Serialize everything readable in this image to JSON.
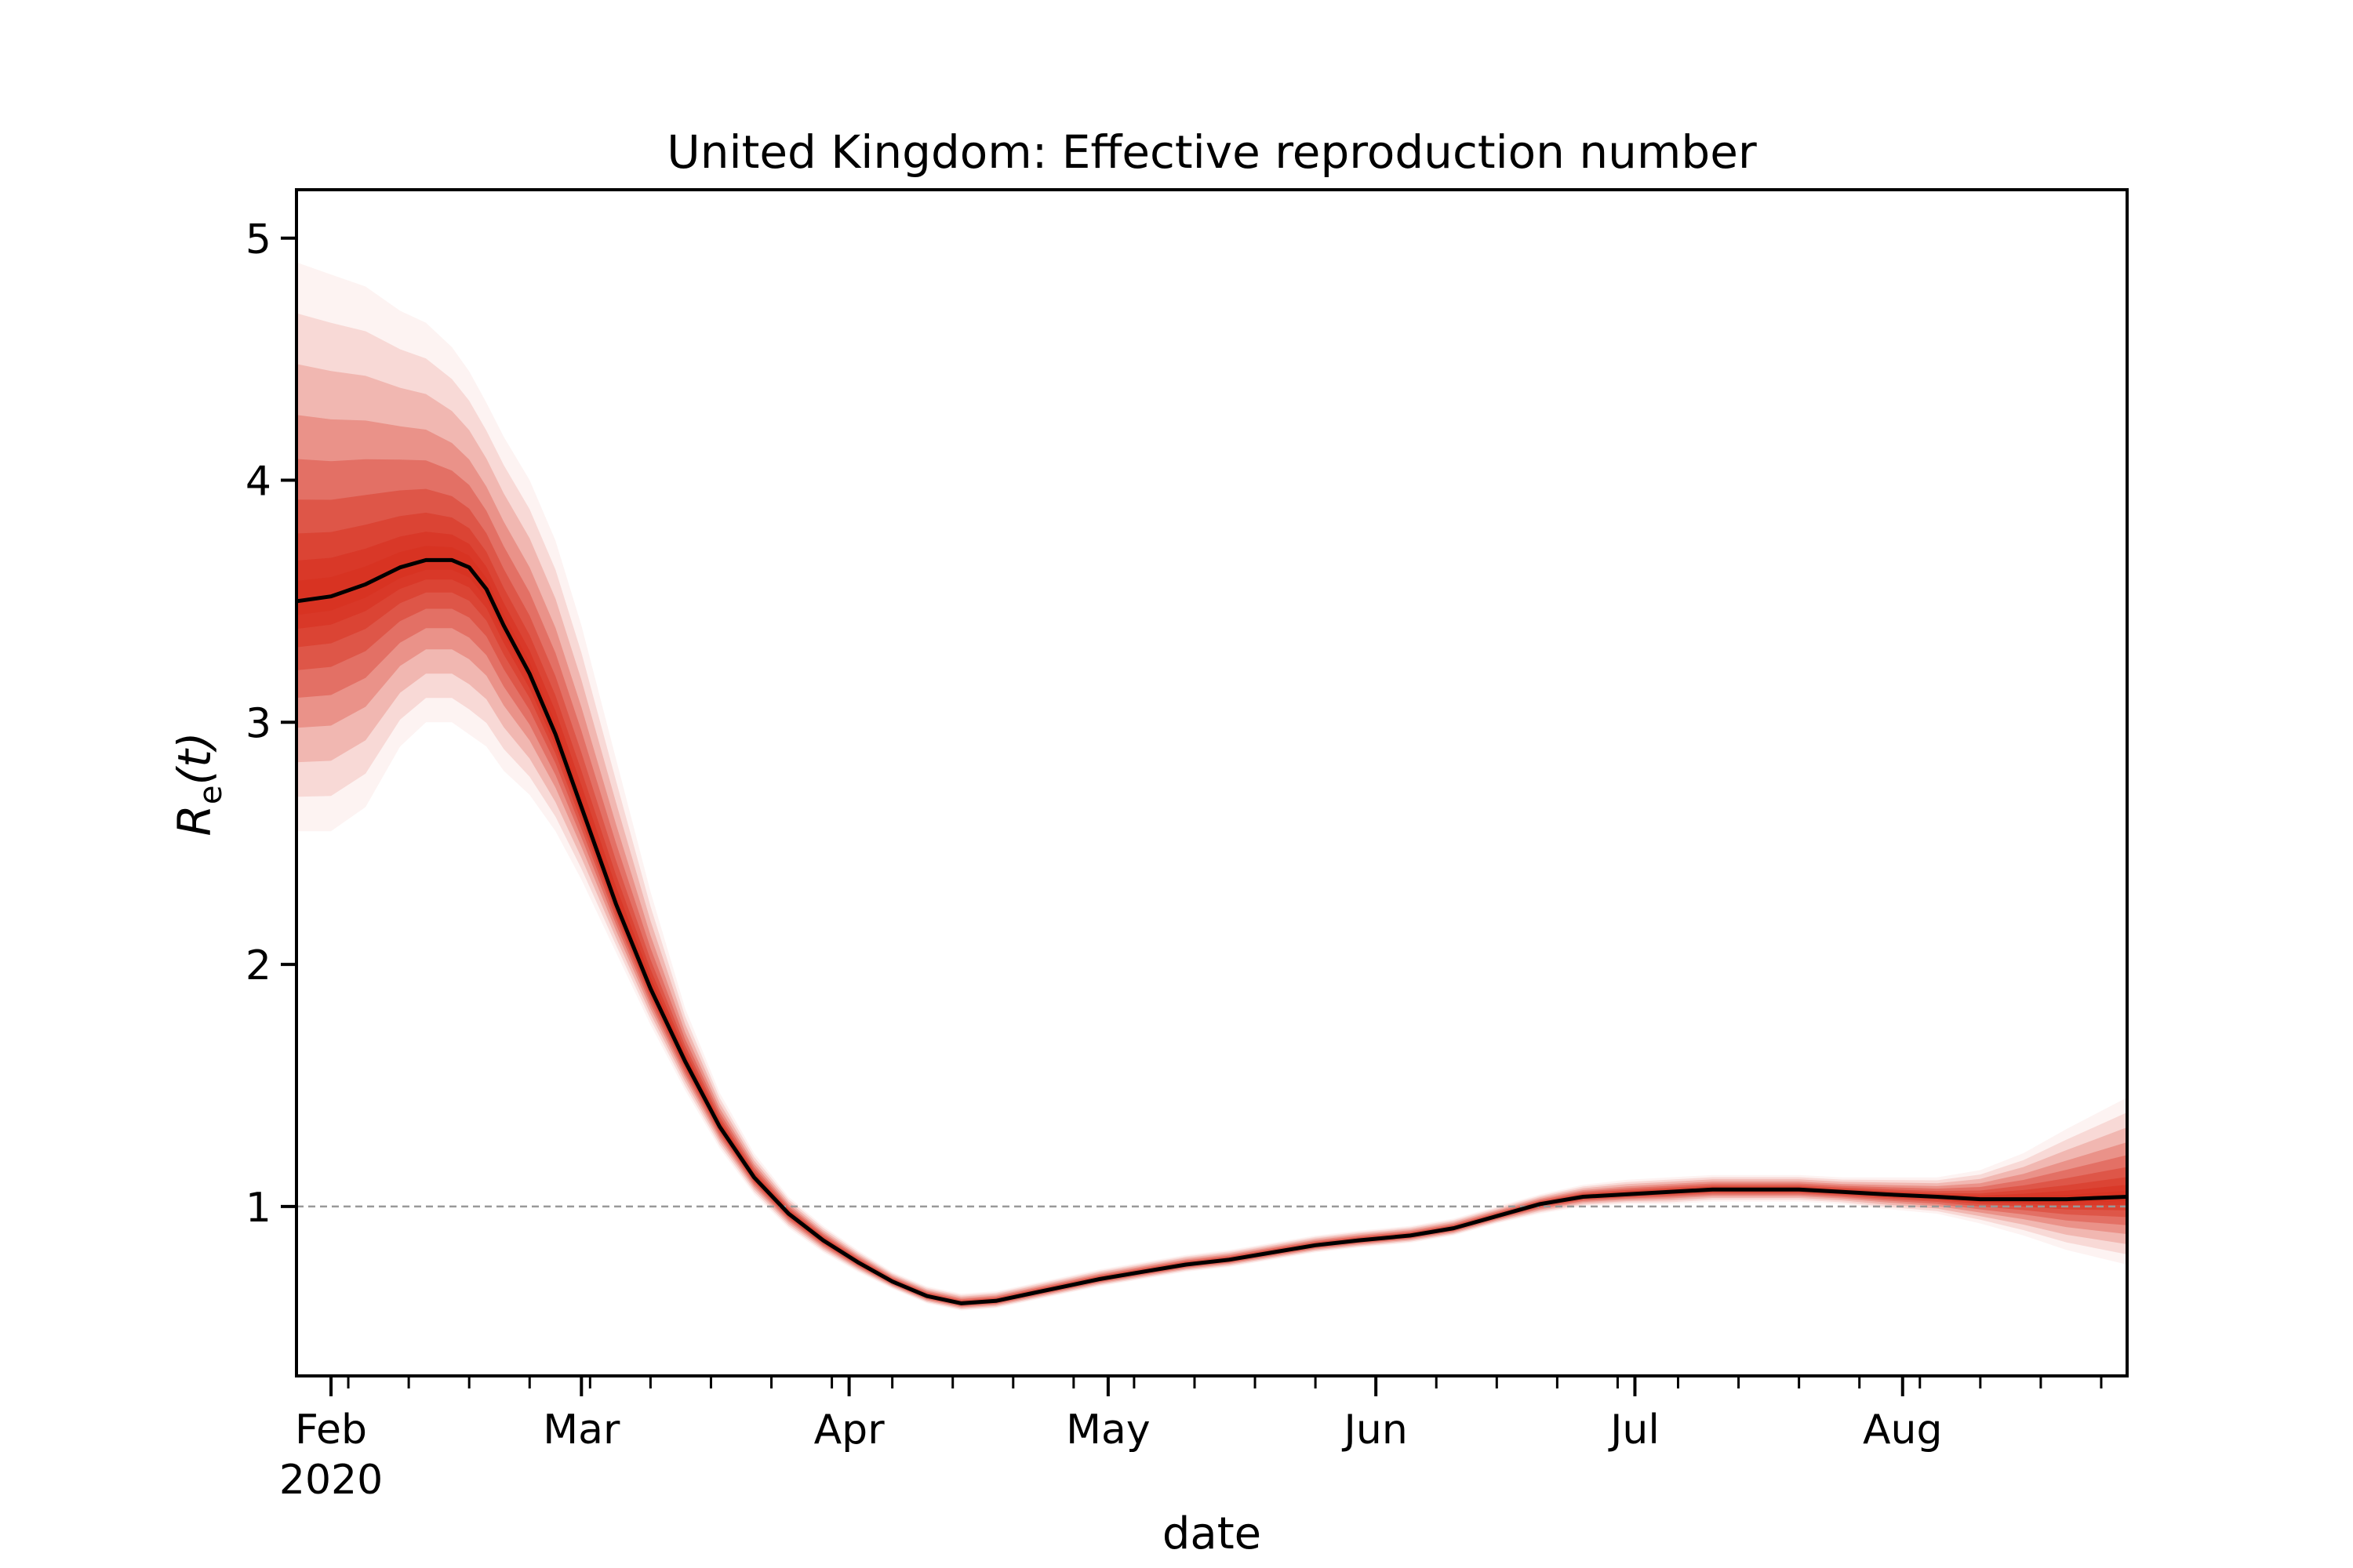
{
  "chart_data": {
    "type": "line",
    "title": "United Kingdom: Effective reproduction number",
    "xlabel": "date",
    "ylabel": "R",
    "ylabel_sub": "e",
    "ylabel_arg": "(t)",
    "xlim": [
      "2020-01-28",
      "2020-08-27"
    ],
    "ylim": [
      0.3,
      5.2
    ],
    "grid": false,
    "legend": "none",
    "line_color": "#000000",
    "band_color": "#d7301f",
    "reference_line": {
      "y": 1,
      "color": "#999999",
      "style": "dashed"
    },
    "x_tick_labels": [
      {
        "date": "2020-02-01",
        "label": "Feb",
        "sublabel": "2020"
      },
      {
        "date": "2020-03-01",
        "label": "Mar"
      },
      {
        "date": "2020-04-01",
        "label": "Apr"
      },
      {
        "date": "2020-05-01",
        "label": "May"
      },
      {
        "date": "2020-06-01",
        "label": "Jun"
      },
      {
        "date": "2020-07-01",
        "label": "Jul"
      },
      {
        "date": "2020-08-01",
        "label": "Aug"
      }
    ],
    "y_ticks": [
      1,
      2,
      3,
      4,
      5
    ],
    "series": [
      {
        "x": [
          "2020-01-28",
          "2020-02-01",
          "2020-02-05",
          "2020-02-09",
          "2020-02-12",
          "2020-02-15",
          "2020-02-17",
          "2020-02-19",
          "2020-02-21",
          "2020-02-24",
          "2020-02-27",
          "2020-03-01",
          "2020-03-05",
          "2020-03-09",
          "2020-03-13",
          "2020-03-17",
          "2020-03-21",
          "2020-03-25",
          "2020-03-29",
          "2020-04-02",
          "2020-04-06",
          "2020-04-10",
          "2020-04-14",
          "2020-04-18",
          "2020-04-22",
          "2020-04-26",
          "2020-04-30",
          "2020-05-05",
          "2020-05-10",
          "2020-05-15",
          "2020-05-20",
          "2020-05-25",
          "2020-05-30",
          "2020-06-05",
          "2020-06-10",
          "2020-06-15",
          "2020-06-20",
          "2020-06-25",
          "2020-06-30",
          "2020-07-05",
          "2020-07-10",
          "2020-07-15",
          "2020-07-20",
          "2020-07-25",
          "2020-07-30",
          "2020-08-05",
          "2020-08-10",
          "2020-08-15",
          "2020-08-20",
          "2020-08-27"
        ],
        "median": [
          3.5,
          3.52,
          3.57,
          3.64,
          3.67,
          3.67,
          3.64,
          3.55,
          3.4,
          3.2,
          2.95,
          2.65,
          2.25,
          1.9,
          1.6,
          1.33,
          1.12,
          0.97,
          0.86,
          0.77,
          0.69,
          0.63,
          0.6,
          0.61,
          0.64,
          0.67,
          0.7,
          0.73,
          0.76,
          0.78,
          0.81,
          0.84,
          0.86,
          0.88,
          0.91,
          0.96,
          1.01,
          1.04,
          1.05,
          1.06,
          1.07,
          1.07,
          1.07,
          1.06,
          1.05,
          1.04,
          1.03,
          1.03,
          1.03,
          1.04
        ],
        "lower": [
          2.55,
          2.55,
          2.65,
          2.9,
          3.0,
          3.0,
          2.95,
          2.9,
          2.8,
          2.7,
          2.55,
          2.35,
          2.05,
          1.75,
          1.48,
          1.24,
          1.05,
          0.91,
          0.81,
          0.73,
          0.66,
          0.6,
          0.57,
          0.58,
          0.61,
          0.64,
          0.67,
          0.7,
          0.73,
          0.75,
          0.78,
          0.81,
          0.83,
          0.85,
          0.88,
          0.93,
          0.97,
          1.0,
          1.01,
          1.01,
          1.02,
          1.02,
          1.02,
          1.01,
          0.99,
          0.97,
          0.93,
          0.88,
          0.82,
          0.76
        ],
        "upper": [
          4.9,
          4.85,
          4.8,
          4.7,
          4.65,
          4.55,
          4.45,
          4.32,
          4.18,
          4.0,
          3.75,
          3.4,
          2.85,
          2.3,
          1.82,
          1.47,
          1.22,
          1.04,
          0.92,
          0.82,
          0.73,
          0.67,
          0.64,
          0.65,
          0.68,
          0.71,
          0.74,
          0.77,
          0.8,
          0.82,
          0.85,
          0.88,
          0.9,
          0.92,
          0.95,
          1.0,
          1.05,
          1.09,
          1.11,
          1.12,
          1.13,
          1.13,
          1.13,
          1.12,
          1.12,
          1.12,
          1.15,
          1.22,
          1.32,
          1.45
        ]
      }
    ]
  }
}
